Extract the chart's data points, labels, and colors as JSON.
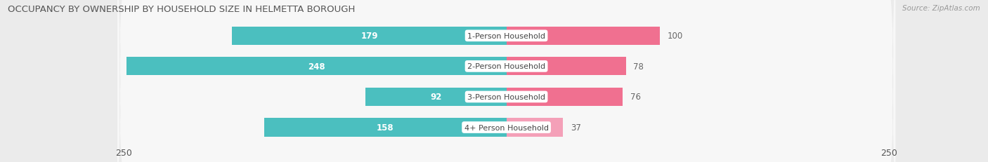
{
  "title": "OCCUPANCY BY OWNERSHIP BY HOUSEHOLD SIZE IN HELMETTA BOROUGH",
  "source": "Source: ZipAtlas.com",
  "categories": [
    "1-Person Household",
    "2-Person Household",
    "3-Person Household",
    "4+ Person Household"
  ],
  "owner_values": [
    179,
    248,
    92,
    158
  ],
  "renter_values": [
    100,
    78,
    76,
    37
  ],
  "max_val": 250,
  "owner_color": "#4BBFBF",
  "renter_color": "#F07090",
  "renter_color_light": "#F4A0B8",
  "bg_color": "#EBEBEB",
  "row_bg_color": "#F7F7F7",
  "title_fontsize": 9.5,
  "bar_label_fontsize": 8.5,
  "category_fontsize": 8,
  "axis_label_fontsize": 9,
  "legend_fontsize": 9,
  "owner_label_threshold": 30
}
